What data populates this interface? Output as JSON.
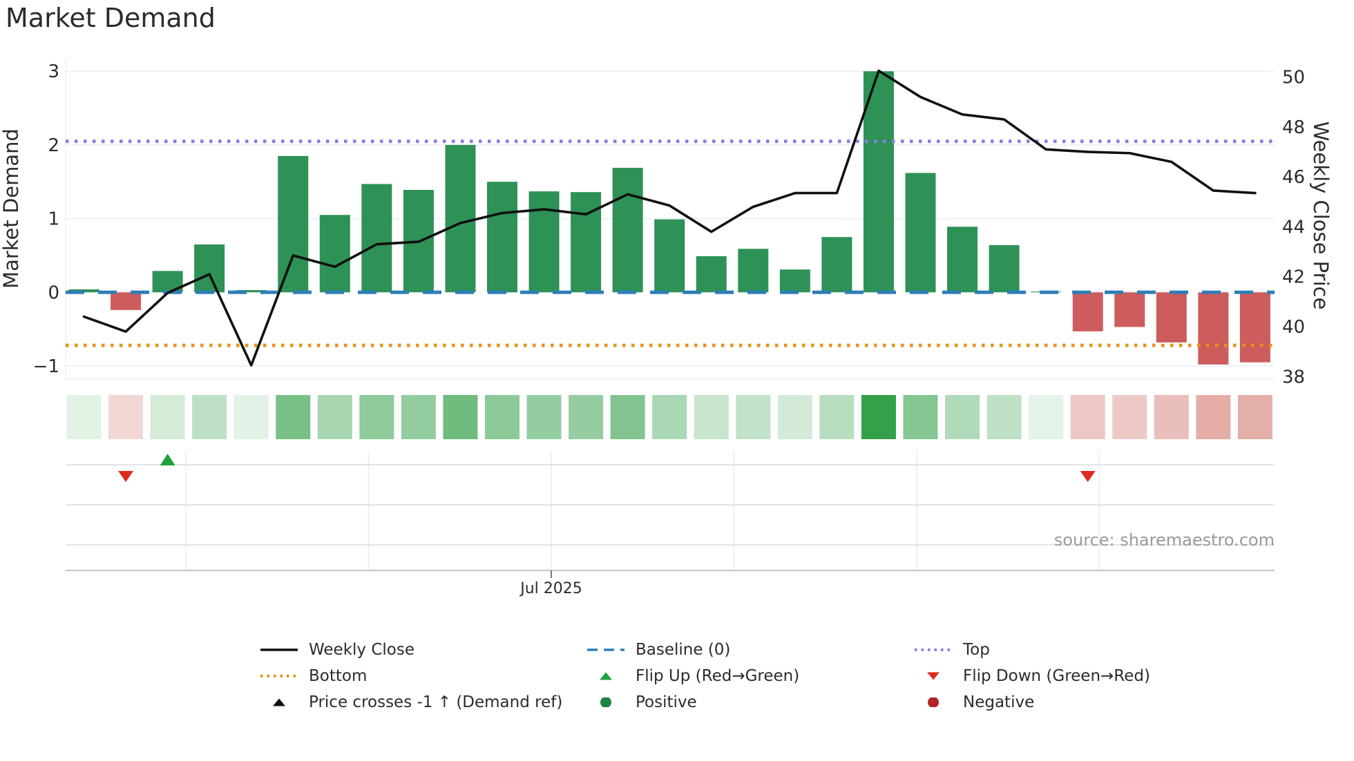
{
  "title": "Market Demand",
  "axes": {
    "left": {
      "label": "Market Demand",
      "ticks": [
        "3",
        "2",
        "1",
        "0",
        "−1"
      ],
      "tick_values": [
        3,
        2,
        1,
        0,
        -1
      ]
    },
    "right": {
      "label": "Weekly Close Price",
      "ticks": [
        "50",
        "48",
        "46",
        "44",
        "42",
        "40",
        "38"
      ],
      "tick_values": [
        50,
        48,
        46,
        44,
        42,
        40,
        38
      ]
    },
    "x": {
      "tick": "Jul 2025"
    }
  },
  "source_note": "source: sharemaestro.com",
  "colors": {
    "bar_positive": "#2e9156",
    "bar_negative": "#cd5c5c",
    "price_line": "#101010",
    "baseline": "#2e7eb8",
    "top_line": "#8b7fe8",
    "bottom_line": "#e8921e",
    "heat_positive_base": "#34a04a",
    "heat_negative_base": "#c0392b",
    "flip_up": "#1fa13c",
    "flip_down": "#da2c1e",
    "positive_dot": "#1c8440",
    "negative_dot": "#b02428",
    "grid": "#e9edf2",
    "panel_grid": "#d8dce2",
    "axis_spine": "#c2c6cc"
  },
  "legend": {
    "items": [
      {
        "label": "Weekly Close",
        "swatch": "line-solid",
        "color": "#101010"
      },
      {
        "label": "Baseline (0)",
        "swatch": "line-dashed",
        "color": "#2e7eb8"
      },
      {
        "label": "Top",
        "swatch": "line-dotted",
        "color": "#8b7fe8"
      },
      {
        "label": "Bottom",
        "swatch": "line-dotted",
        "color": "#e8921e"
      },
      {
        "label": "Flip Up (Red→Green)",
        "swatch": "triangle-up",
        "color": "#1fa13c"
      },
      {
        "label": "Flip Down (Green→Red)",
        "swatch": "triangle-down",
        "color": "#da2c1e"
      },
      {
        "label": "Price crosses -1 ↑ (Demand ref)",
        "swatch": "triangle-up",
        "color": "#101010"
      },
      {
        "label": "Positive",
        "swatch": "circle",
        "color": "#1c8440"
      },
      {
        "label": "Negative",
        "swatch": "circle",
        "color": "#b02428"
      }
    ]
  },
  "chart_data": {
    "type": "bar+line",
    "n_weeks": 29,
    "x_tick_labels": [
      "Jul 2025"
    ],
    "series": [
      {
        "name": "Market Demand",
        "type": "bar",
        "yaxis": "left",
        "values": [
          0.04,
          -0.24,
          0.29,
          0.65,
          0.03,
          1.85,
          1.05,
          1.47,
          1.39,
          2.0,
          1.5,
          1.37,
          1.36,
          1.69,
          0.99,
          0.49,
          0.59,
          0.31,
          0.75,
          3.0,
          1.62,
          0.89,
          0.64,
          0.01,
          -0.53,
          -0.47,
          -0.68,
          -0.98,
          -0.95
        ]
      },
      {
        "name": "Weekly Close",
        "type": "line",
        "yaxis": "right",
        "values": [
          40.4,
          39.8,
          41.35,
          42.1,
          38.45,
          42.85,
          42.4,
          43.3,
          43.4,
          44.15,
          44.55,
          44.7,
          44.5,
          45.3,
          44.85,
          43.8,
          44.8,
          45.35,
          45.35,
          50.25,
          49.2,
          48.5,
          48.3,
          47.1,
          47.0,
          46.95,
          46.6,
          45.45,
          45.35
        ]
      }
    ],
    "heat_strip": {
      "note": "color intensity follows Market Demand bar values",
      "values_ref": "series.0.values"
    },
    "reference_lines": [
      {
        "name": "Baseline (0)",
        "axis": "left",
        "value": 0
      },
      {
        "name": "Top",
        "axis": "left",
        "value": 2.05
      },
      {
        "name": "Bottom",
        "axis": "left",
        "value": -0.72
      }
    ],
    "markers": [
      {
        "type": "flip_down",
        "week": 2
      },
      {
        "type": "flip_up",
        "week": 3
      },
      {
        "type": "flip_down",
        "week": 25
      }
    ],
    "left_ylim": [
      -1.18,
      3.17
    ],
    "right_ylim": [
      37.9,
      50.75
    ],
    "grid": "horizontal-only-main-panel",
    "legend_position": "bottom-center"
  }
}
